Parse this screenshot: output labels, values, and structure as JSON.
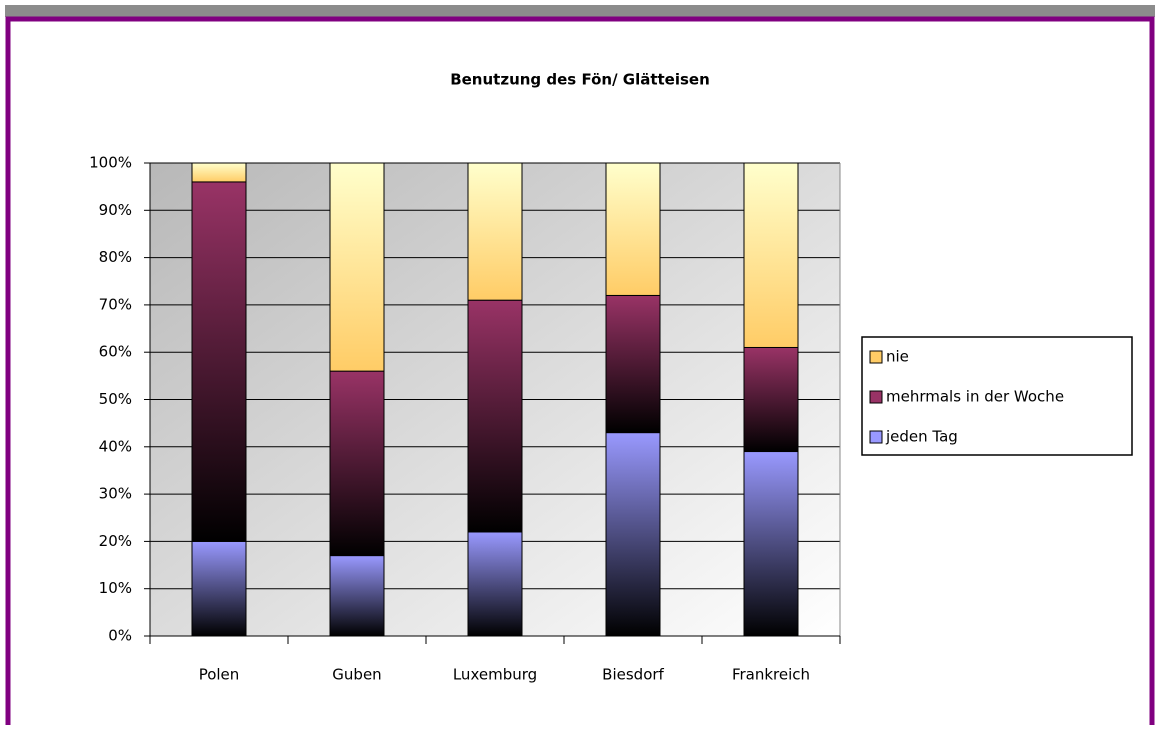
{
  "chart_data": {
    "type": "stacked_bar",
    "title": "Benutzung des Fön/ Glätteisen",
    "categories": [
      "Polen",
      "Guben",
      "Luxemburg",
      "Biesdorf",
      "Frankreich"
    ],
    "series": [
      {
        "name": "jeden Tag",
        "color": "#9999ff",
        "values": [
          20,
          17,
          22,
          43,
          39
        ]
      },
      {
        "name": "mehrmals in der Woche",
        "color": "#993366",
        "values": [
          76,
          39,
          49,
          29,
          22
        ]
      },
      {
        "name": "nie",
        "color": "#ffcc66",
        "values": [
          4,
          44,
          29,
          28,
          39
        ]
      }
    ],
    "ylim": [
      0,
      100
    ],
    "yticks": [
      {
        "value": 0,
        "label": "0%"
      },
      {
        "value": 10,
        "label": "10%"
      },
      {
        "value": 20,
        "label": "20%"
      },
      {
        "value": 30,
        "label": "30%"
      },
      {
        "value": 40,
        "label": "40%"
      },
      {
        "value": 50,
        "label": "50%"
      },
      {
        "value": 60,
        "label": "60%"
      },
      {
        "value": 70,
        "label": "70%"
      },
      {
        "value": 80,
        "label": "80%"
      },
      {
        "value": 90,
        "label": "90%"
      },
      {
        "value": 100,
        "label": "100%"
      }
    ],
    "grid": true,
    "legend": "right"
  }
}
